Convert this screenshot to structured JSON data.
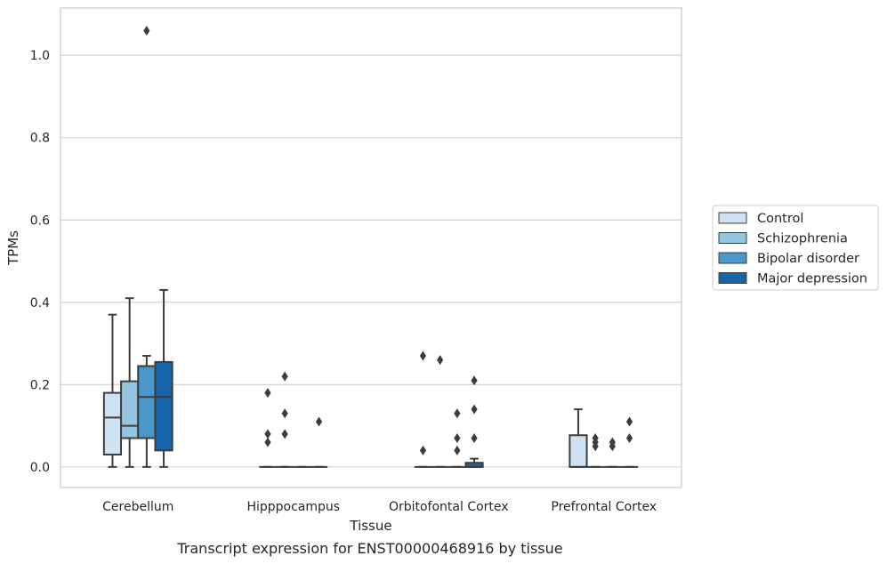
{
  "caption": "Transcript expression for ENST00000468916 by tissue",
  "chart_data": {
    "type": "box",
    "xlabel": "Tissue",
    "ylabel": "TPMs",
    "categories": [
      "Cerebellum",
      "Hipppocampus",
      "Orbitofontal Cortex",
      "Prefrontal Cortex"
    ],
    "ylim": [
      -0.05,
      1.115
    ],
    "yticks": [
      0.0,
      0.2,
      0.4,
      0.6,
      0.8,
      1.0
    ],
    "ytick_labels": [
      "0.0",
      "0.2",
      "0.4",
      "0.6",
      "0.8",
      "1.0"
    ],
    "grid": "horizontal",
    "legend_position": "right",
    "series": [
      {
        "name": "Control",
        "color": "#d0e1f2",
        "boxes": [
          {
            "whislo": 0.0,
            "q1": 0.03,
            "med": 0.12,
            "q3": 0.18,
            "whishi": 0.37,
            "fliers": []
          },
          {
            "whislo": 0.0,
            "q1": 0.0,
            "med": 0.0,
            "q3": 0.0,
            "whishi": 0.0,
            "fliers": [
              0.06,
              0.08,
              0.18
            ]
          },
          {
            "whislo": 0.0,
            "q1": 0.0,
            "med": 0.0,
            "q3": 0.0,
            "whishi": 0.0,
            "fliers": [
              0.04,
              0.27
            ]
          },
          {
            "whislo": 0.0,
            "q1": 0.0,
            "med": 0.0,
            "q3": 0.077,
            "whishi": 0.14,
            "fliers": []
          }
        ]
      },
      {
        "name": "Schizophrenia",
        "color": "#94c4df",
        "boxes": [
          {
            "whislo": 0.0,
            "q1": 0.07,
            "med": 0.1,
            "q3": 0.208,
            "whishi": 0.41,
            "fliers": []
          },
          {
            "whislo": 0.0,
            "q1": 0.0,
            "med": 0.0,
            "q3": 0.0,
            "whishi": 0.0,
            "fliers": [
              0.08,
              0.13,
              0.22
            ]
          },
          {
            "whislo": 0.0,
            "q1": 0.0,
            "med": 0.0,
            "q3": 0.0,
            "whishi": 0.0,
            "fliers": [
              0.26
            ]
          },
          {
            "whislo": 0.0,
            "q1": 0.0,
            "med": 0.0,
            "q3": 0.0,
            "whishi": 0.0,
            "fliers": [
              0.05,
              0.06,
              0.07
            ]
          }
        ]
      },
      {
        "name": "Bipolar disorder",
        "color": "#4a98c9",
        "boxes": [
          {
            "whislo": 0.0,
            "q1": 0.07,
            "med": 0.17,
            "q3": 0.245,
            "whishi": 0.27,
            "fliers": [
              1.06
            ]
          },
          {
            "whislo": 0.0,
            "q1": 0.0,
            "med": 0.0,
            "q3": 0.0,
            "whishi": 0.0,
            "fliers": []
          },
          {
            "whislo": 0.0,
            "q1": 0.0,
            "med": 0.0,
            "q3": 0.0,
            "whishi": 0.0,
            "fliers": [
              0.04,
              0.07,
              0.13
            ]
          },
          {
            "whislo": 0.0,
            "q1": 0.0,
            "med": 0.0,
            "q3": 0.0,
            "whishi": 0.0,
            "fliers": [
              0.05,
              0.06
            ]
          }
        ]
      },
      {
        "name": "Major depression",
        "color": "#1764ab",
        "boxes": [
          {
            "whislo": 0.0,
            "q1": 0.04,
            "med": 0.17,
            "q3": 0.255,
            "whishi": 0.43,
            "fliers": []
          },
          {
            "whislo": 0.0,
            "q1": 0.0,
            "med": 0.0,
            "q3": 0.0,
            "whishi": 0.0,
            "fliers": [
              0.11
            ]
          },
          {
            "whislo": 0.0,
            "q1": 0.0,
            "med": 0.0,
            "q3": 0.01,
            "whishi": 0.02,
            "fliers": [
              0.07,
              0.14,
              0.21
            ]
          },
          {
            "whislo": 0.0,
            "q1": 0.0,
            "med": 0.0,
            "q3": 0.0,
            "whishi": 0.0,
            "fliers": [
              0.07,
              0.11
            ]
          }
        ]
      }
    ]
  }
}
